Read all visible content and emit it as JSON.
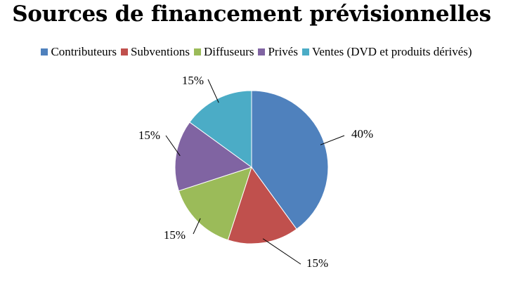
{
  "chart_data": {
    "type": "pie",
    "title": "Sources de financement prévisionnelles",
    "legend_position": "top",
    "categories": [
      "Contributeurs",
      "Subventions",
      "Diffuseurs",
      "Privés",
      "Ventes (DVD et produits dérivés)"
    ],
    "values": [
      40,
      15,
      15,
      15,
      15
    ],
    "data_labels": [
      "40%",
      "15%",
      "15%",
      "15%",
      "15%"
    ],
    "colors": [
      "#4f81bd",
      "#c0504d",
      "#9bbb59",
      "#8064a2",
      "#4bacc6"
    ]
  }
}
